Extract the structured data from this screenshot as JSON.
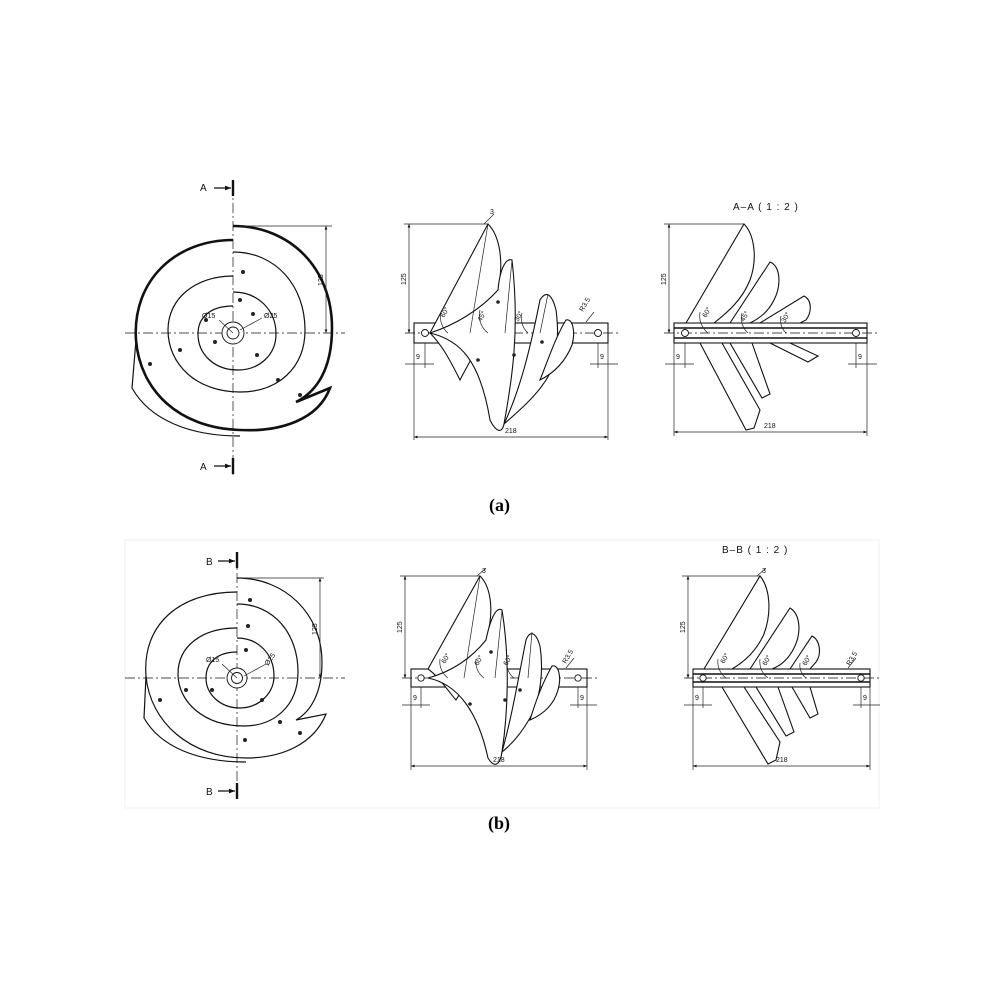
{
  "panels": [
    {
      "caption": "(a)",
      "section": {
        "letter": "A",
        "title": "A–A ( 1 : 2 )"
      },
      "front_view": {
        "dim_height": "125",
        "dim_d_inner": "Ø15",
        "dim_d_outer": "Ø25"
      },
      "side_view": {
        "dim_height": "125",
        "dim_length": "218",
        "dim_thickness": "3",
        "dim_radius": "R3.5",
        "dim_offset_left": "9",
        "dim_offset_right": "9",
        "angles": [
          "60°",
          "45°",
          "30°"
        ]
      },
      "section_view": {
        "dim_height": "125",
        "dim_length": "218",
        "dim_offset_left": "9",
        "dim_offset_right": "9",
        "angles": [
          "60°",
          "45°",
          "30°"
        ]
      }
    },
    {
      "caption": "(b)",
      "section": {
        "letter": "B",
        "title": "B–B ( 1 : 2 )"
      },
      "front_view": {
        "dim_height": "125",
        "dim_d_inner": "Ø15",
        "dim_d_outer": "Ø25"
      },
      "side_view": {
        "dim_height": "125",
        "dim_length": "218",
        "dim_thickness": "3",
        "dim_radius": "R3.5",
        "dim_offset_left": "9",
        "dim_offset_right": "9",
        "angles": [
          "60°",
          "60°",
          "60°"
        ]
      },
      "section_view": {
        "dim_height": "125",
        "dim_length": "218",
        "dim_thickness": "3",
        "dim_radius": "R3.5",
        "dim_offset_left": "9",
        "dim_offset_right": "9",
        "angles": [
          "60°",
          "60°",
          "60°"
        ]
      }
    }
  ]
}
